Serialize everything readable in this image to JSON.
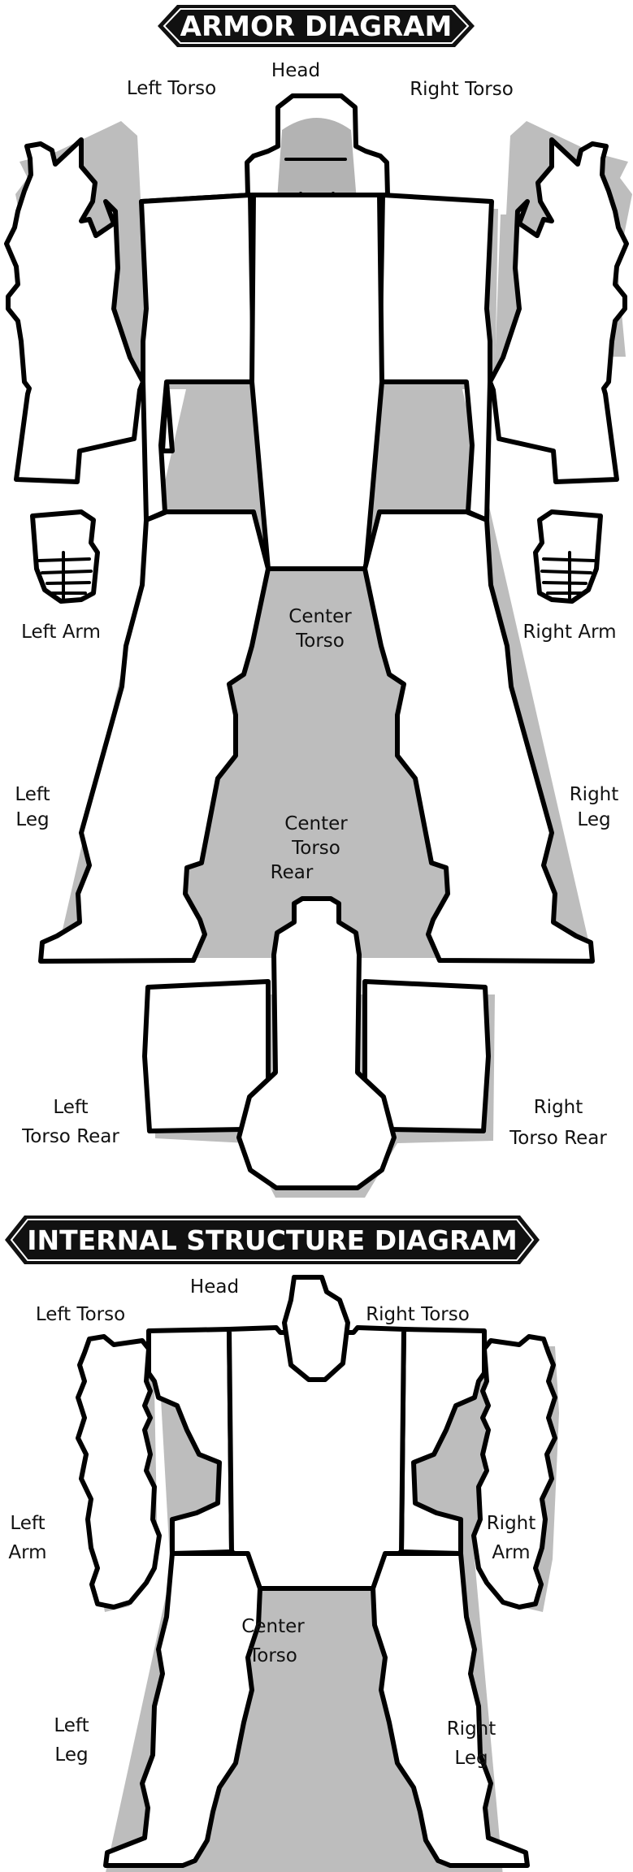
{
  "armor_diagram": {
    "title": "ARMOR DIAGRAM",
    "labels": {
      "head": "Head",
      "left_torso": "Left Torso",
      "right_torso": "Right Torso",
      "left_arm": "Left Arm",
      "right_arm": "Right Arm",
      "center_torso_line1": "Center",
      "center_torso_line2": "Torso",
      "left_leg_line1": "Left",
      "left_leg_line2": "Leg",
      "right_leg_line1": "Right",
      "right_leg_line2": "Leg",
      "ct_rear_line1": "Center",
      "ct_rear_line2": "Torso",
      "ct_rear_line3": "Rear",
      "lt_rear_line1": "Left",
      "lt_rear_line2": "Torso Rear",
      "rt_rear_line1": "Right",
      "rt_rear_line2": "Torso Rear"
    }
  },
  "internal_structure_diagram": {
    "title": "INTERNAL STRUCTURE DIAGRAM",
    "labels": {
      "head": "Head",
      "left_torso": "Left Torso",
      "right_torso": "Right Torso",
      "left_arm_line1": "Left",
      "left_arm_line2": "Arm",
      "right_arm_line1": "Right",
      "right_arm_line2": "Arm",
      "center_torso_line1": "Center",
      "center_torso_line2": "Torso",
      "left_leg_line1": "Left",
      "left_leg_line2": "Leg",
      "right_leg_line1": "Right",
      "right_leg_line2": "Leg"
    }
  },
  "colors": {
    "banner_bg": "#111111",
    "banner_text": "#ffffff",
    "outline": "#000000",
    "shadow": "#bdbdbd",
    "visor": "#b3b3b3"
  }
}
